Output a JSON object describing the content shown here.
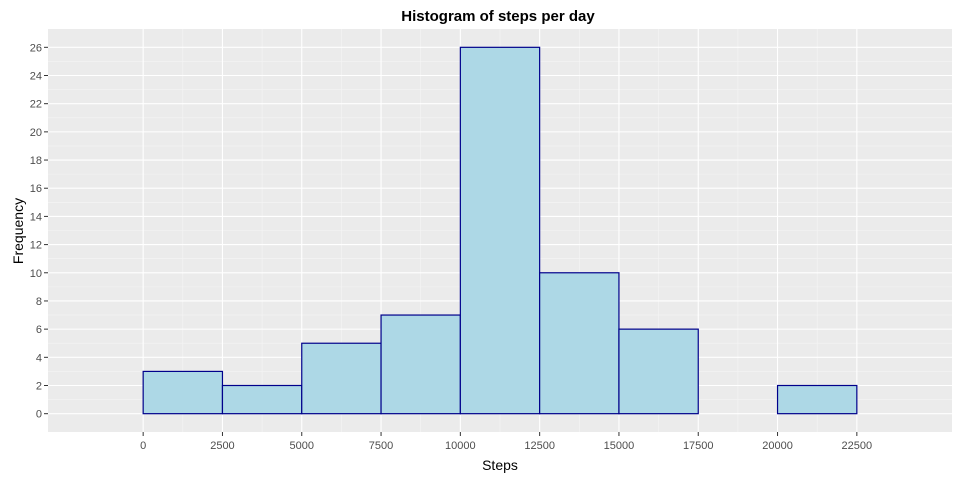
{
  "chart_data": {
    "type": "histogram",
    "title": "Histogram of steps per day",
    "xlabel": "Steps",
    "ylabel": "Frequency",
    "bins": [
      {
        "start": 0,
        "end": 2500,
        "count": 3
      },
      {
        "start": 2500,
        "end": 5000,
        "count": 2
      },
      {
        "start": 5000,
        "end": 7500,
        "count": 5
      },
      {
        "start": 7500,
        "end": 10000,
        "count": 7
      },
      {
        "start": 10000,
        "end": 12500,
        "count": 26
      },
      {
        "start": 12500,
        "end": 15000,
        "count": 10
      },
      {
        "start": 15000,
        "end": 17500,
        "count": 6
      },
      {
        "start": 17500,
        "end": 20000,
        "count": 0
      },
      {
        "start": 20000,
        "end": 22500,
        "count": 2
      }
    ],
    "x_ticks": [
      "0",
      "2500",
      "5000",
      "7500",
      "10000",
      "12500",
      "15000",
      "17500",
      "20000",
      "22500"
    ],
    "y_ticks": [
      "0",
      "2",
      "4",
      "6",
      "8",
      "10",
      "12",
      "14",
      "16",
      "18",
      "20",
      "22",
      "24",
      "26"
    ],
    "xlim": [
      -3000,
      25500
    ],
    "ylim": [
      -1.3,
      27.3
    ],
    "grid": true,
    "colors": {
      "panel_background": "#ebebeb",
      "grid_major": "#ffffff",
      "grid_minor": "#f5f5f5",
      "bar_fill": "#add8e6",
      "bar_stroke": "#00008b"
    }
  }
}
